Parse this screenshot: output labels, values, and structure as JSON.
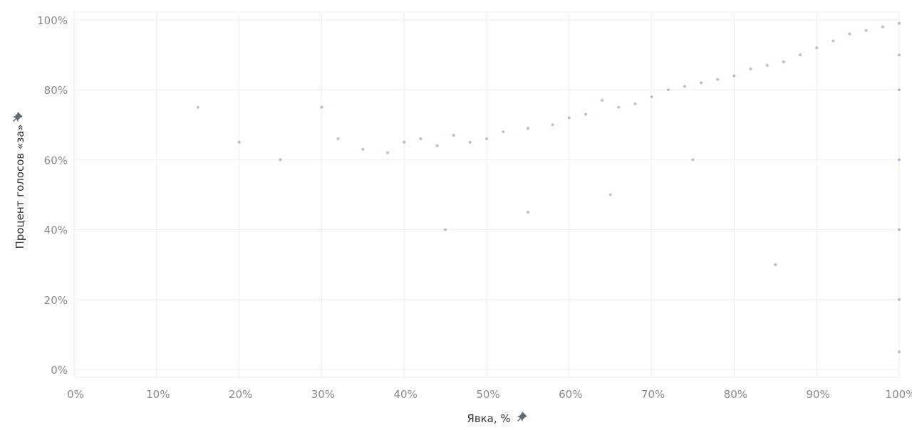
{
  "chart_data": {
    "type": "scatter",
    "title": "",
    "xlabel": "Явка, %",
    "ylabel": "Процент голосов «за»",
    "xlim": [
      0,
      100
    ],
    "ylim": [
      0,
      100
    ],
    "x_ticks": [
      "0%",
      "10%",
      "20%",
      "30%",
      "40%",
      "50%",
      "60%",
      "70%",
      "80%",
      "90%",
      "100%"
    ],
    "y_ticks": [
      "0%",
      "20%",
      "40%",
      "60%",
      "80%",
      "100%"
    ],
    "grid": true,
    "legend": "none",
    "point_color": "#4e79b4",
    "axis_pin_icon": "pin-icon",
    "series": [
      {
        "values": [
          {
            "x": 32,
            "y": 66
          },
          {
            "x": 35,
            "y": 63
          },
          {
            "x": 38,
            "y": 62
          },
          {
            "x": 40,
            "y": 65
          },
          {
            "x": 42,
            "y": 66
          },
          {
            "x": 44,
            "y": 64
          },
          {
            "x": 46,
            "y": 67
          },
          {
            "x": 48,
            "y": 65
          },
          {
            "x": 50,
            "y": 66
          },
          {
            "x": 52,
            "y": 68
          },
          {
            "x": 55,
            "y": 69
          },
          {
            "x": 58,
            "y": 70
          },
          {
            "x": 60,
            "y": 72
          },
          {
            "x": 62,
            "y": 73
          },
          {
            "x": 64,
            "y": 77
          },
          {
            "x": 66,
            "y": 75
          },
          {
            "x": 68,
            "y": 76
          },
          {
            "x": 70,
            "y": 78
          },
          {
            "x": 72,
            "y": 80
          },
          {
            "x": 74,
            "y": 81
          },
          {
            "x": 76,
            "y": 82
          },
          {
            "x": 78,
            "y": 83
          },
          {
            "x": 80,
            "y": 84
          },
          {
            "x": 82,
            "y": 86
          },
          {
            "x": 84,
            "y": 87
          },
          {
            "x": 86,
            "y": 88
          },
          {
            "x": 88,
            "y": 90
          },
          {
            "x": 90,
            "y": 92
          },
          {
            "x": 92,
            "y": 94
          },
          {
            "x": 94,
            "y": 96
          },
          {
            "x": 96,
            "y": 97
          },
          {
            "x": 98,
            "y": 98
          },
          {
            "x": 100,
            "y": 99
          },
          {
            "x": 100,
            "y": 90
          },
          {
            "x": 100,
            "y": 80
          },
          {
            "x": 100,
            "y": 60
          },
          {
            "x": 100,
            "y": 40
          },
          {
            "x": 100,
            "y": 20
          },
          {
            "x": 100,
            "y": 5
          },
          {
            "x": 45,
            "y": 40
          },
          {
            "x": 55,
            "y": 45
          },
          {
            "x": 65,
            "y": 50
          },
          {
            "x": 75,
            "y": 60
          },
          {
            "x": 85,
            "y": 30
          },
          {
            "x": 25,
            "y": 60
          },
          {
            "x": 20,
            "y": 65
          },
          {
            "x": 15,
            "y": 75
          },
          {
            "x": 30,
            "y": 75
          }
        ]
      }
    ]
  }
}
